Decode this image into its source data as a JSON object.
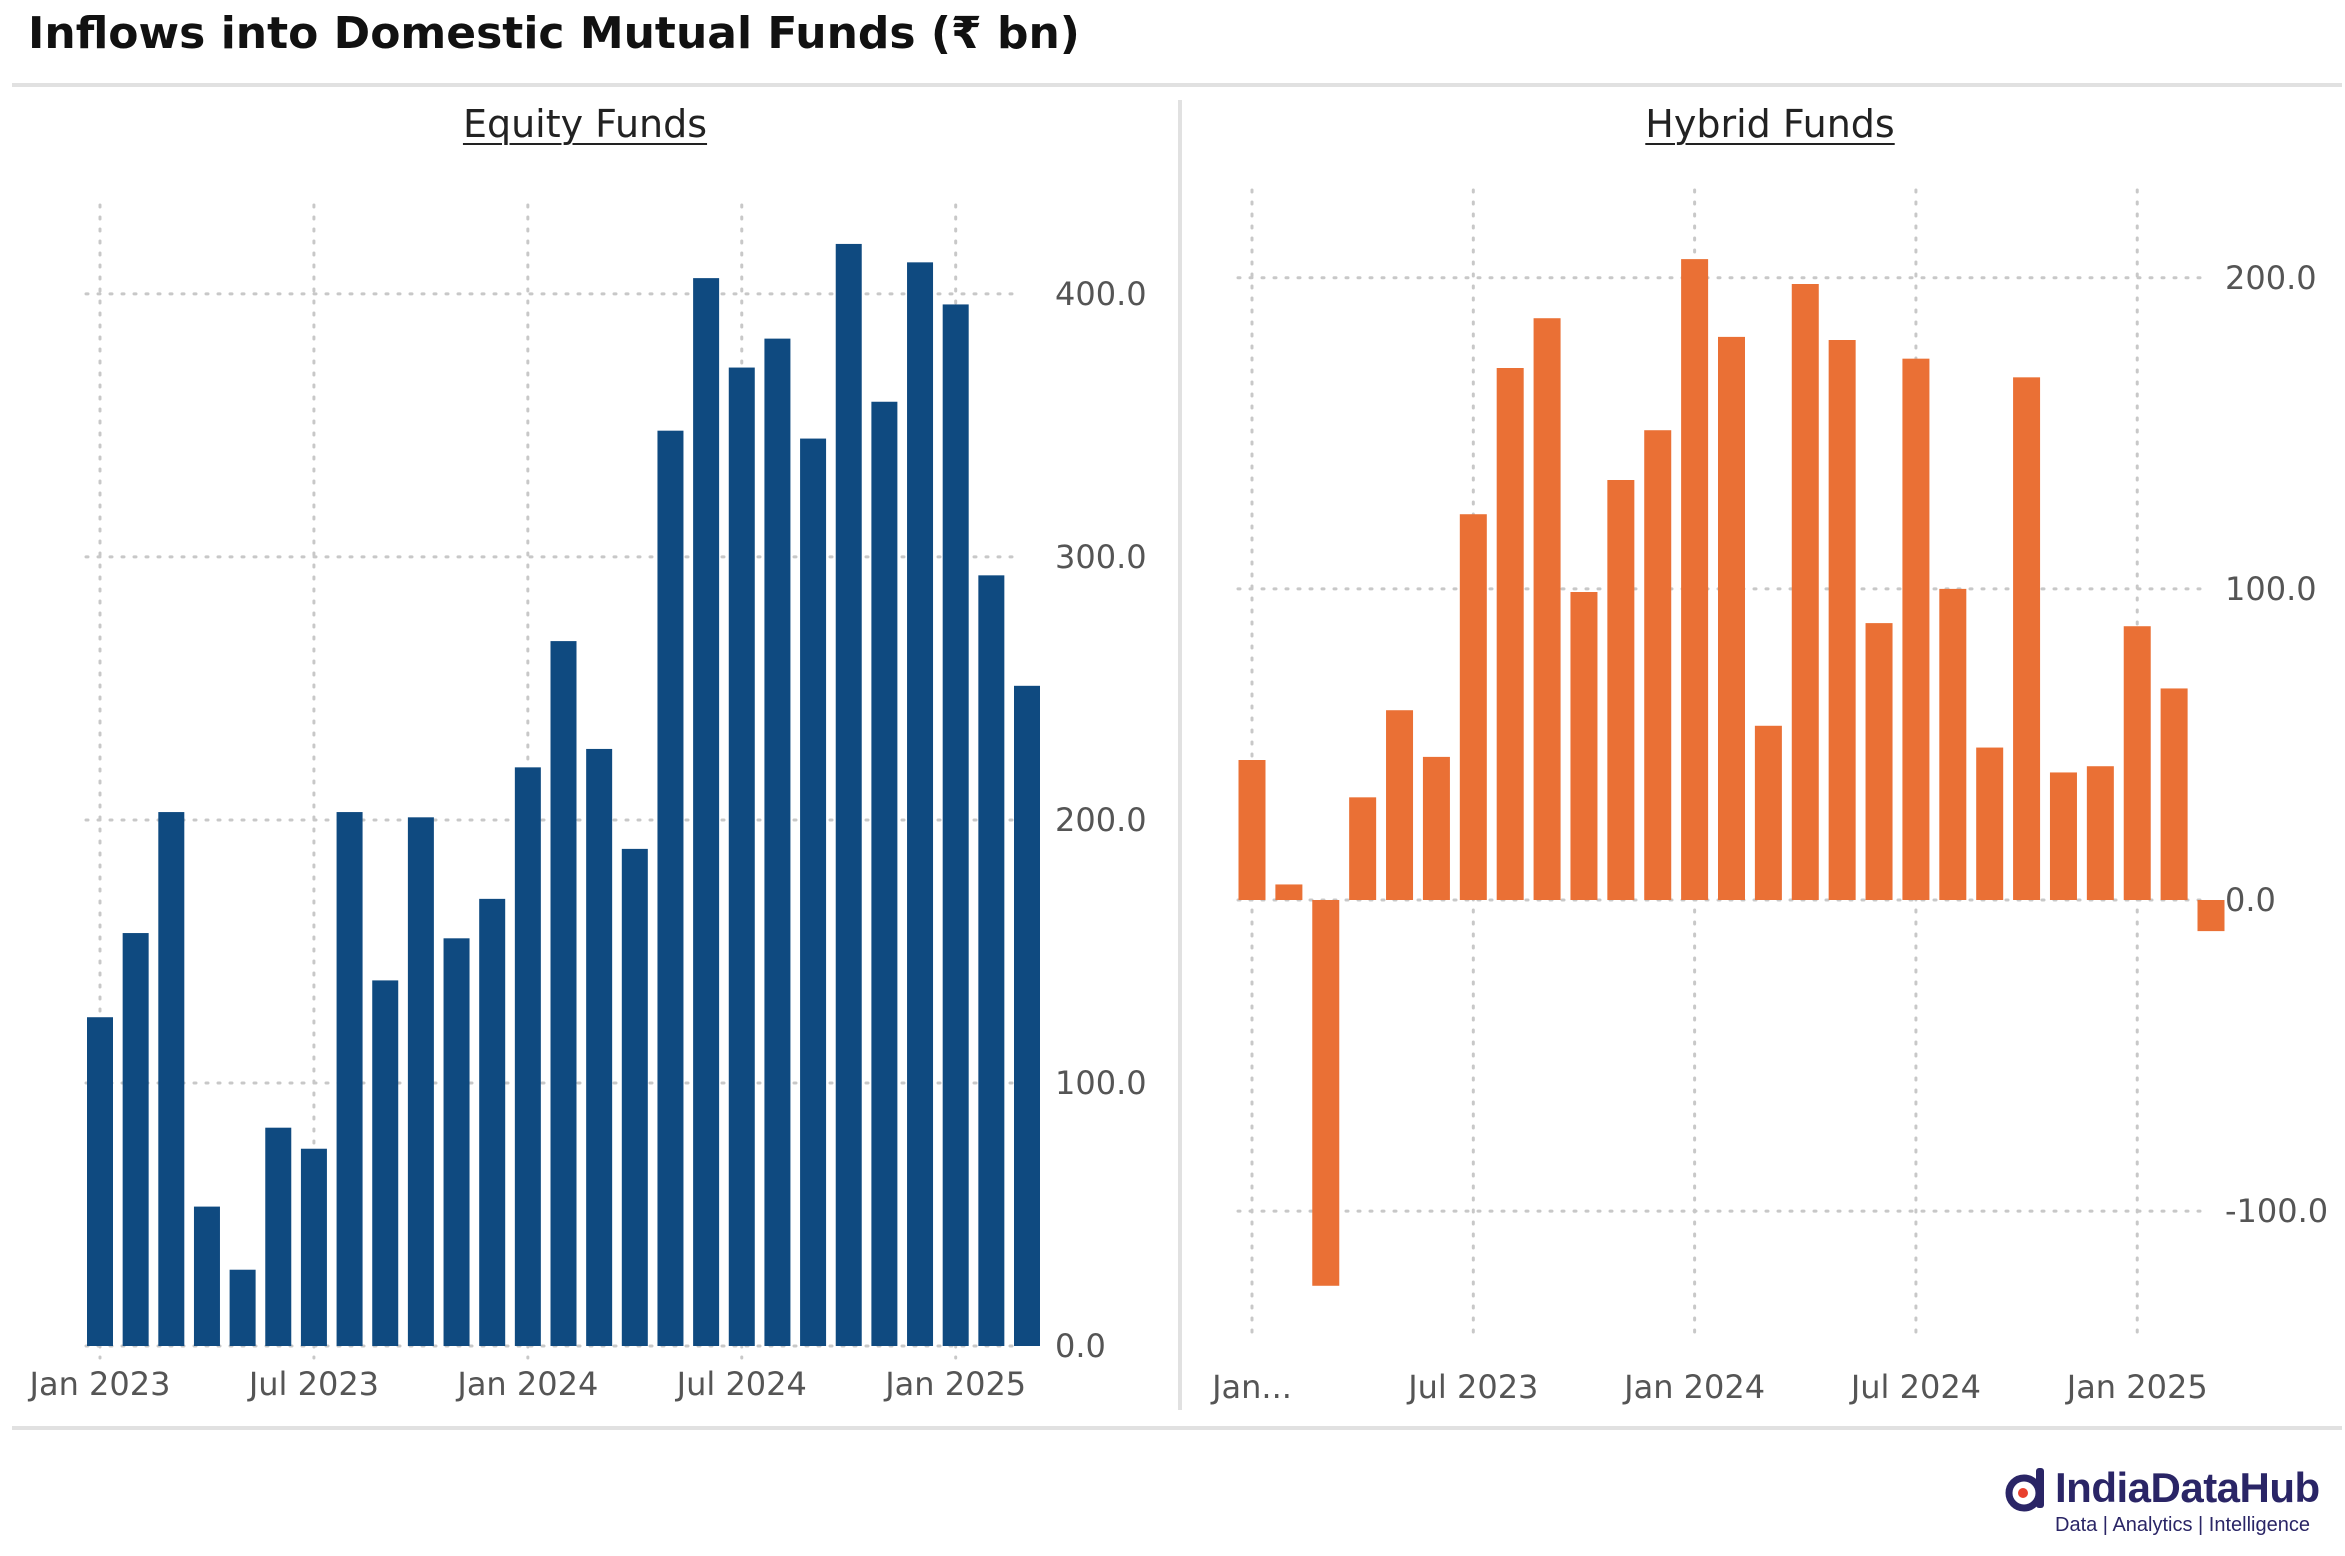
{
  "title": "Inflows into Domestic Mutual Funds (₹ bn)",
  "brand": {
    "name": "IndiaDataHub",
    "tagline": "Data | Analytics | Intelligence"
  },
  "colors": {
    "equity": "#0f4a80",
    "hybrid": "#ea7035",
    "grid": "#c8c8c8",
    "tick": "#555555"
  },
  "chart_data": [
    {
      "type": "bar",
      "title": "Equity Funds",
      "categories": [
        "Jan 2023",
        "Feb 2023",
        "Mar 2023",
        "Apr 2023",
        "May 2023",
        "Jun 2023",
        "Jul 2023",
        "Aug 2023",
        "Sep 2023",
        "Oct 2023",
        "Nov 2023",
        "Dec 2023",
        "Jan 2024",
        "Feb 2024",
        "Mar 2024",
        "Apr 2024",
        "May 2024",
        "Jun 2024",
        "Jul 2024",
        "Aug 2024",
        "Sep 2024",
        "Oct 2024",
        "Nov 2024",
        "Dec 2024",
        "Jan 2025",
        "Feb 2025",
        "Mar 2025"
      ],
      "values": [
        125,
        157,
        203,
        53,
        29,
        83,
        75,
        203,
        139,
        201,
        155,
        170,
        220,
        268,
        227,
        189,
        348,
        406,
        372,
        383,
        345,
        419,
        359,
        412,
        396,
        293,
        251
      ],
      "xticks": [
        {
          "index": 0,
          "label": "Jan 2023"
        },
        {
          "index": 6,
          "label": "Jul 2023"
        },
        {
          "index": 12,
          "label": "Jan 2024"
        },
        {
          "index": 18,
          "label": "Jul 2024"
        },
        {
          "index": 24,
          "label": "Jan 2025"
        }
      ],
      "yticks": [
        0,
        100,
        200,
        300,
        400
      ],
      "ytick_labels": [
        "0.0",
        "100.0",
        "200.0",
        "300.0",
        "400.0"
      ],
      "ylim": [
        0,
        430
      ],
      "grid": true,
      "xlabel": "",
      "ylabel": ""
    },
    {
      "type": "bar",
      "title": "Hybrid Funds",
      "categories": [
        "Jan 2023",
        "Feb 2023",
        "Mar 2023",
        "Apr 2023",
        "May 2023",
        "Jun 2023",
        "Jul 2023",
        "Aug 2023",
        "Sep 2023",
        "Oct 2023",
        "Nov 2023",
        "Dec 2023",
        "Jan 2024",
        "Feb 2024",
        "Mar 2024",
        "Apr 2024",
        "May 2024",
        "Jun 2024",
        "Jul 2024",
        "Aug 2024",
        "Sep 2024",
        "Oct 2024",
        "Nov 2024",
        "Dec 2024",
        "Jan 2025",
        "Feb 2025",
        "Mar 2025"
      ],
      "values": [
        45,
        5,
        -124,
        33,
        61,
        46,
        124,
        171,
        187,
        99,
        135,
        151,
        206,
        181,
        56,
        198,
        180,
        89,
        174,
        100,
        49,
        168,
        41,
        43,
        88,
        68,
        -10
      ],
      "xticks": [
        {
          "index": 0,
          "label": "Jan..."
        },
        {
          "index": 6,
          "label": "Jul 2023"
        },
        {
          "index": 12,
          "label": "Jan 2024"
        },
        {
          "index": 18,
          "label": "Jul 2024"
        },
        {
          "index": 24,
          "label": "Jan 2025"
        }
      ],
      "yticks": [
        -100,
        0,
        100,
        200
      ],
      "ytick_labels": [
        "-100.0",
        "0.0",
        "100.0",
        "200.0"
      ],
      "ylim": [
        -135,
        225
      ],
      "grid": true,
      "xlabel": "",
      "ylabel": ""
    }
  ]
}
